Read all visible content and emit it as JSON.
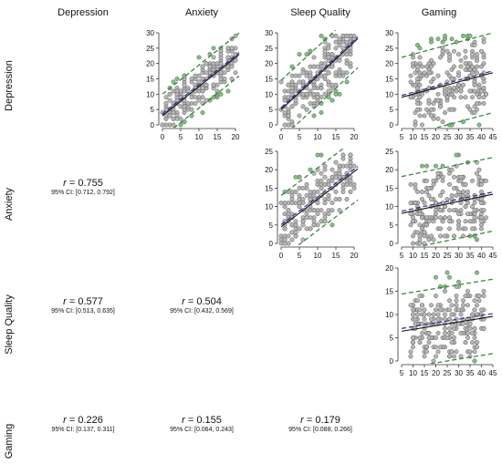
{
  "columns": [
    "Depression",
    "Anxiety",
    "Sleep Quality",
    "Gaming"
  ],
  "rows": [
    "Depression",
    "Anxiety",
    "Sleep Quality",
    "Gaming"
  ],
  "correlations": [
    {
      "row": "Anxiety",
      "col": "Depression",
      "r": "= 0.755",
      "ci": "95% CI: [0.712, 0.792]"
    },
    {
      "row": "Sleep Quality",
      "col": "Depression",
      "r": "= 0.577",
      "ci": "95% CI: [0.513, 0.635]"
    },
    {
      "row": "Sleep Quality",
      "col": "Anxiety",
      "r": "= 0.504",
      "ci": "95% CI: [0.432, 0.569]"
    },
    {
      "row": "Gaming",
      "col": "Depression",
      "r": "= 0.226",
      "ci": "95% CI: [0.137, 0.311]"
    },
    {
      "row": "Gaming",
      "col": "Anxiety",
      "r": "= 0.155",
      "ci": "95% CI: [0.064, 0.243]"
    },
    {
      "row": "Gaming",
      "col": "Sleep Quality",
      "r": "= 0.179",
      "ci": "95% CI: [0.088, 0.266]"
    }
  ],
  "r_symbol": "r",
  "colors": {
    "points_fill": "#b8b8b8",
    "points_stroke": "#555555",
    "green_points": "#7fc47f",
    "fit_line": "#111111",
    "fit_dashed": "#2a2a8c",
    "pred_band": "#2e7d32"
  },
  "chart_data": [
    {
      "type": "scatter",
      "row": "Depression",
      "col": "Anxiety",
      "xlim": [
        0,
        21
      ],
      "ylim": [
        0,
        30
      ],
      "xticks": [
        0,
        5,
        10,
        15,
        20
      ],
      "yticks": [
        0,
        5,
        10,
        15,
        20,
        25,
        30
      ],
      "fit": {
        "intercept": 3.0,
        "slope": 0.95
      },
      "band": 7.0
    },
    {
      "type": "scatter",
      "row": "Depression",
      "col": "Sleep Quality",
      "xlim": [
        0,
        21
      ],
      "ylim": [
        0,
        30
      ],
      "xticks": [
        0,
        5,
        10,
        15,
        20
      ],
      "yticks": [
        0,
        5,
        10,
        15,
        20,
        25,
        30
      ],
      "fit": {
        "intercept": 5.0,
        "slope": 1.1
      },
      "band": 9.5
    },
    {
      "type": "scatter",
      "row": "Depression",
      "col": "Gaming",
      "xlim": [
        5,
        45
      ],
      "ylim": [
        0,
        30
      ],
      "xticks": [
        5,
        10,
        15,
        20,
        25,
        30,
        35,
        40,
        45
      ],
      "yticks": [
        0,
        5,
        10,
        15,
        20,
        25,
        30
      ],
      "fit": {
        "intercept": 8.0,
        "slope": 0.2
      },
      "band": 13.0
    },
    {
      "type": "scatter",
      "row": "Anxiety",
      "col": "Sleep Quality",
      "xlim": [
        0,
        21
      ],
      "ylim": [
        0,
        25
      ],
      "xticks": [
        0,
        5,
        10,
        15,
        20
      ],
      "yticks": [
        0,
        5,
        10,
        15,
        20,
        25
      ],
      "fit": {
        "intercept": 4.5,
        "slope": 0.75
      },
      "band": 8.5
    },
    {
      "type": "scatter",
      "row": "Anxiety",
      "col": "Gaming",
      "xlim": [
        5,
        45
      ],
      "ylim": [
        0,
        25
      ],
      "xticks": [
        5,
        10,
        15,
        20,
        25,
        30,
        35,
        40,
        45
      ],
      "yticks": [
        0,
        5,
        10,
        15,
        20,
        25
      ],
      "fit": {
        "intercept": 7.5,
        "slope": 0.13
      },
      "band": 10.0
    },
    {
      "type": "scatter",
      "row": "Sleep Quality",
      "col": "Gaming",
      "xlim": [
        5,
        45
      ],
      "ylim": [
        0,
        20
      ],
      "xticks": [
        5,
        10,
        15,
        20,
        25,
        30,
        35,
        40,
        45
      ],
      "yticks": [
        0,
        5,
        10,
        15,
        20
      ],
      "fit": {
        "intercept": 6.0,
        "slope": 0.08
      },
      "band": 8.0
    }
  ]
}
